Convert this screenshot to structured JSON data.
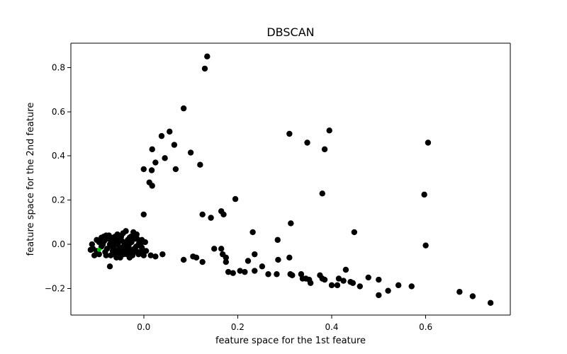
{
  "chart_data": {
    "type": "scatter",
    "title": "DBSCAN",
    "xlabel": "feature space for the 1st feature",
    "ylabel": "feature space for the 2nd feature",
    "xlim": [
      -0.155,
      0.78
    ],
    "ylim": [
      -0.32,
      0.91
    ],
    "xticks": [
      0.0,
      0.2,
      0.4,
      0.6
    ],
    "xtick_labels": [
      "0.0",
      "0.2",
      "0.4",
      "0.6"
    ],
    "yticks": [
      -0.2,
      0.0,
      0.2,
      0.4,
      0.6,
      0.8
    ],
    "ytick_labels": [
      "−0.2",
      "0.0",
      "0.2",
      "0.4",
      "0.6",
      "0.8"
    ],
    "grid": false,
    "series": [
      {
        "color": "#000000",
        "points": [
          [
            -0.09,
            0.03
          ],
          [
            -0.095,
            -0.045
          ],
          [
            -0.082,
            -0.035
          ],
          [
            -0.08,
            0.04
          ],
          [
            -0.078,
            -0.02
          ],
          [
            -0.075,
            0.025
          ],
          [
            -0.07,
            -0.05
          ],
          [
            -0.068,
            -0.01
          ],
          [
            -0.065,
            0.03
          ],
          [
            -0.062,
            -0.04
          ],
          [
            -0.06,
            0.005
          ],
          [
            -0.058,
            -0.055
          ],
          [
            -0.056,
            0.045
          ],
          [
            -0.054,
            -0.025
          ],
          [
            -0.052,
            0.015
          ],
          [
            -0.05,
            -0.06
          ],
          [
            -0.048,
            0.035
          ],
          [
            -0.046,
            -0.015
          ],
          [
            -0.044,
            0.05
          ],
          [
            -0.042,
            -0.03
          ],
          [
            -0.04,
            0.0
          ],
          [
            -0.038,
            0.06
          ],
          [
            -0.036,
            -0.045
          ],
          [
            -0.034,
            0.02
          ],
          [
            -0.032,
            -0.005
          ],
          [
            -0.03,
            0.03
          ],
          [
            -0.028,
            -0.03
          ],
          [
            -0.026,
            0.01
          ],
          [
            -0.024,
            -0.05
          ],
          [
            -0.022,
            0.055
          ],
          [
            -0.02,
            -0.02
          ],
          [
            -0.018,
            0.04
          ],
          [
            -0.016,
            -0.01
          ],
          [
            -0.014,
            0.025
          ],
          [
            -0.012,
            -0.035
          ],
          [
            -0.01,
            0.005
          ],
          [
            -0.008,
            0.015
          ],
          [
            -0.006,
            -0.04
          ],
          [
            -0.004,
            0.02
          ],
          [
            -0.002,
            -0.03
          ],
          [
            -0.09,
            -0.01
          ],
          [
            -0.087,
            0.0
          ],
          [
            -0.084,
            0.015
          ],
          [
            -0.072,
            0.0
          ],
          [
            -0.066,
            -0.03
          ],
          [
            -0.063,
            0.01
          ],
          [
            -0.058,
            -0.06
          ],
          [
            -0.055,
            -0.04
          ],
          [
            -0.05,
            -0.04
          ],
          [
            -0.047,
            -0.02
          ],
          [
            -0.043,
            -0.01
          ],
          [
            -0.039,
            -0.02
          ],
          [
            -0.035,
            -0.03
          ],
          [
            -0.072,
            -0.1
          ],
          [
            -0.095,
            0.01
          ],
          [
            -0.1,
            -0.03
          ],
          [
            -0.105,
            -0.05
          ],
          [
            -0.108,
            -0.02
          ],
          [
            -0.11,
            0.0
          ],
          [
            -0.113,
            -0.025
          ],
          [
            -0.1,
            0.02
          ],
          [
            -0.085,
            0.035
          ],
          [
            -0.08,
            -0.05
          ],
          [
            -0.074,
            0.04
          ],
          [
            -0.069,
            0.015
          ],
          [
            -0.064,
            -0.015
          ],
          [
            -0.061,
            0.035
          ],
          [
            -0.058,
            0.02
          ],
          [
            -0.055,
            0.0
          ],
          [
            -0.05,
            0.025
          ],
          [
            -0.046,
            0.015
          ],
          [
            -0.043,
            -0.045
          ],
          [
            -0.038,
            -0.035
          ],
          [
            -0.035,
            0.01
          ],
          [
            -0.031,
            -0.02
          ],
          [
            -0.027,
            0.035
          ],
          [
            -0.023,
            -0.04
          ],
          [
            -0.019,
            0.025
          ],
          [
            -0.015,
            0.045
          ],
          [
            -0.011,
            -0.045
          ],
          [
            -0.007,
            0.0
          ],
          [
            -0.004,
            -0.015
          ],
          [
            0.0,
            -0.05
          ],
          [
            0.005,
            -0.03
          ],
          [
            0.015,
            -0.05
          ],
          [
            0.025,
            -0.055
          ],
          [
            0.04,
            -0.045
          ],
          [
            0.003,
            0.01
          ],
          [
            -0.025,
            -0.05
          ],
          [
            -0.03,
            -0.06
          ],
          [
            0.0,
            0.135
          ],
          [
            0.0,
            0.34
          ],
          [
            0.012,
            0.28
          ],
          [
            0.018,
            0.265
          ],
          [
            0.017,
            0.335
          ],
          [
            0.025,
            0.37
          ],
          [
            0.018,
            0.43
          ],
          [
            0.045,
            0.39
          ],
          [
            0.068,
            0.34
          ],
          [
            0.065,
            0.45
          ],
          [
            0.038,
            0.49
          ],
          [
            0.055,
            0.51
          ],
          [
            0.085,
            0.615
          ],
          [
            0.13,
            0.795
          ],
          [
            0.135,
            0.85
          ],
          [
            0.1,
            0.415
          ],
          [
            0.12,
            0.36
          ],
          [
            0.085,
            -0.07
          ],
          [
            0.105,
            -0.055
          ],
          [
            0.112,
            -0.06
          ],
          [
            0.125,
            -0.08
          ],
          [
            0.125,
            0.135
          ],
          [
            0.143,
            0.12
          ],
          [
            0.15,
            -0.02
          ],
          [
            0.165,
            -0.02
          ],
          [
            0.165,
            0.15
          ],
          [
            0.17,
            0.135
          ],
          [
            0.168,
            -0.045
          ],
          [
            0.175,
            -0.06
          ],
          [
            0.175,
            -0.08
          ],
          [
            0.18,
            -0.125
          ],
          [
            0.19,
            -0.13
          ],
          [
            0.195,
            0.205
          ],
          [
            0.205,
            -0.12
          ],
          [
            0.215,
            -0.125
          ],
          [
            0.222,
            -0.075
          ],
          [
            0.232,
            0.055
          ],
          [
            0.236,
            -0.045
          ],
          [
            0.236,
            -0.12
          ],
          [
            0.252,
            -0.1
          ],
          [
            0.265,
            -0.135
          ],
          [
            0.283,
            -0.135
          ],
          [
            0.285,
            0.02
          ],
          [
            0.286,
            -0.07
          ],
          [
            0.31,
            -0.06
          ],
          [
            0.312,
            -0.135
          ],
          [
            0.316,
            -0.14
          ],
          [
            0.313,
            0.095
          ],
          [
            0.31,
            0.5
          ],
          [
            0.335,
            -0.135
          ],
          [
            0.338,
            -0.155
          ],
          [
            0.345,
            -0.155
          ],
          [
            0.352,
            -0.16
          ],
          [
            0.355,
            -0.175
          ],
          [
            0.348,
            0.46
          ],
          [
            0.375,
            -0.14
          ],
          [
            0.38,
            -0.155
          ],
          [
            0.38,
            0.23
          ],
          [
            0.385,
            0.43
          ],
          [
            0.395,
            0.515
          ],
          [
            0.385,
            -0.16
          ],
          [
            0.4,
            -0.185
          ],
          [
            0.412,
            -0.185
          ],
          [
            0.415,
            -0.155
          ],
          [
            0.425,
            -0.165
          ],
          [
            0.43,
            -0.115
          ],
          [
            0.44,
            -0.17
          ],
          [
            0.445,
            -0.175
          ],
          [
            0.448,
            0.055
          ],
          [
            0.46,
            -0.19
          ],
          [
            0.478,
            -0.15
          ],
          [
            0.5,
            -0.16
          ],
          [
            0.5,
            -0.23
          ],
          [
            0.52,
            -0.21
          ],
          [
            0.542,
            -0.185
          ],
          [
            0.57,
            -0.19
          ],
          [
            0.597,
            0.225
          ],
          [
            0.6,
            -0.005
          ],
          [
            0.605,
            0.46
          ],
          [
            0.672,
            -0.215
          ],
          [
            0.7,
            -0.235
          ],
          [
            0.738,
            -0.265
          ]
        ]
      },
      {
        "color": "#00c000",
        "points": [
          [
            -0.095,
            -0.025
          ]
        ]
      }
    ]
  }
}
